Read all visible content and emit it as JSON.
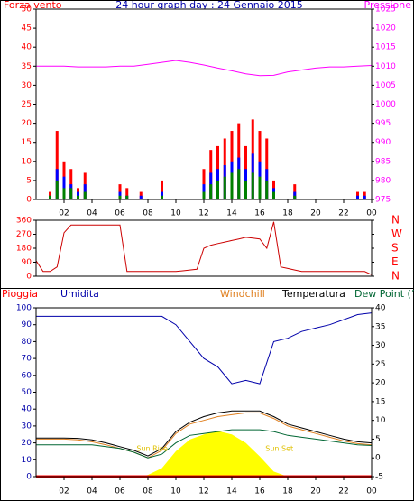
{
  "chart_data": [
    {
      "type": "bar",
      "title": "24 hour graph day : 24 Gennaio 2015",
      "ylabel": "Forza vento",
      "y2label": "Pressione",
      "xlim": [
        0,
        24
      ],
      "xticks": [
        {
          "value": 2,
          "label": "02"
        },
        {
          "value": 4,
          "label": "04"
        },
        {
          "value": 6,
          "label": "06"
        },
        {
          "value": 8,
          "label": "08"
        },
        10,
        12,
        14,
        16,
        18,
        20,
        22,
        {
          "value": 24,
          "label": "00"
        }
      ],
      "ylim": [
        0,
        50
      ],
      "yticks": [
        0,
        5,
        10,
        15,
        20,
        25,
        30,
        35,
        40,
        45,
        50
      ],
      "y2lim": [
        975,
        1025
      ],
      "y2ticks": [
        975,
        980,
        985,
        990,
        995,
        1000,
        1005,
        1010,
        1015,
        1020,
        1025
      ],
      "series": [
        {
          "type": "bar",
          "color": "#ff0000",
          "x": [
            0,
            0.5,
            1,
            1.5,
            2,
            2.5,
            3,
            3.5,
            4,
            4.5,
            5,
            5.5,
            6,
            6.5,
            7,
            7.5,
            8,
            8.5,
            9,
            9.5,
            10,
            10.5,
            11,
            11.5,
            12,
            12.5,
            13,
            13.5,
            14,
            14.5,
            15,
            15.5,
            16,
            16.5,
            17,
            17.5,
            18,
            18.5,
            19,
            19.5,
            20,
            20.5,
            21,
            21.5,
            22,
            22.5,
            23,
            23.5
          ],
          "values": [
            0,
            0,
            2,
            18,
            10,
            8,
            3,
            7,
            0,
            0,
            0,
            0,
            4,
            3,
            0,
            2,
            0,
            0,
            5,
            0,
            0,
            0,
            0,
            0,
            8,
            13,
            14,
            16,
            18,
            20,
            14,
            21,
            18,
            16,
            5,
            0,
            0,
            4,
            0,
            0,
            0,
            0,
            0,
            0,
            0,
            0,
            2,
            2
          ]
        },
        {
          "type": "bar",
          "color": "#0000ff",
          "x": [
            0,
            0.5,
            1,
            1.5,
            2,
            2.5,
            3,
            3.5,
            4,
            4.5,
            5,
            5.5,
            6,
            6.5,
            7,
            7.5,
            8,
            8.5,
            9,
            9.5,
            10,
            10.5,
            11,
            11.5,
            12,
            12.5,
            13,
            13.5,
            14,
            14.5,
            15,
            15.5,
            16,
            16.5,
            17,
            17.5,
            18,
            18.5,
            19,
            19.5,
            20,
            20.5,
            21,
            21.5,
            22,
            22.5,
            23,
            23.5
          ],
          "values": [
            0,
            0,
            1,
            8,
            6,
            4,
            2,
            4,
            0,
            0,
            0,
            0,
            2,
            1,
            0,
            1,
            0,
            0,
            2,
            0,
            0,
            0,
            0,
            0,
            4,
            7,
            8,
            9,
            10,
            11,
            8,
            12,
            10,
            8,
            3,
            0,
            0,
            2,
            0,
            0,
            0,
            0,
            0,
            0,
            0,
            0,
            1,
            1
          ]
        },
        {
          "type": "bar",
          "color": "#008000",
          "x": [
            0,
            0.5,
            1,
            1.5,
            2,
            2.5,
            3,
            3.5,
            4,
            4.5,
            5,
            5.5,
            6,
            6.5,
            7,
            7.5,
            8,
            8.5,
            9,
            9.5,
            10,
            10.5,
            11,
            11.5,
            12,
            12.5,
            13,
            13.5,
            14,
            14.5,
            15,
            15.5,
            16,
            16.5,
            17,
            17.5,
            18,
            18.5,
            19,
            19.5,
            20,
            20.5,
            21,
            21.5,
            22,
            22.5,
            23,
            23.5
          ],
          "values": [
            0,
            0,
            1,
            5,
            3,
            3,
            1,
            2,
            0,
            0,
            0,
            0,
            1,
            1,
            0,
            0,
            0,
            0,
            1,
            0,
            0,
            0,
            0,
            0,
            2,
            4,
            5,
            6,
            7,
            8,
            5,
            7,
            6,
            5,
            2,
            0,
            0,
            1,
            0,
            0,
            0,
            0,
            0,
            0,
            0,
            0,
            0,
            0
          ]
        },
        {
          "type": "line",
          "axis": "y2",
          "color": "#ff00ff",
          "x": [
            0,
            1,
            2,
            3,
            4,
            5,
            6,
            7,
            8,
            9,
            10,
            11,
            12,
            13,
            14,
            15,
            16,
            17,
            18,
            19,
            20,
            21,
            22,
            23,
            24
          ],
          "values": [
            1010,
            1010,
            1010,
            1009.8,
            1009.8,
            1009.8,
            1010,
            1010,
            1010.5,
            1011,
            1011.5,
            1011,
            1010.3,
            1009.5,
            1008.8,
            1008,
            1007.5,
            1007.6,
            1008.5,
            1009,
            1009.5,
            1009.8,
            1009.8,
            1010,
            1010.2
          ]
        }
      ]
    },
    {
      "type": "line",
      "xlim": [
        0,
        24
      ],
      "ylim": [
        0,
        360
      ],
      "yticks": [
        0,
        90,
        180,
        270,
        360
      ],
      "y2lim": [
        0,
        360
      ],
      "y2ticks": [
        {
          "value": 0,
          "label": "N"
        },
        {
          "value": 90,
          "label": "E"
        },
        {
          "value": 180,
          "label": "S"
        },
        {
          "value": 270,
          "label": "W"
        },
        {
          "value": 360,
          "label": "N"
        }
      ],
      "series": [
        {
          "type": "line",
          "color": "#cc0000",
          "x": [
            0,
            0.5,
            1,
            1.5,
            2,
            2.5,
            3,
            3.5,
            4,
            4.5,
            5,
            5.5,
            6,
            6.5,
            7,
            7.5,
            8,
            8.5,
            9,
            9.5,
            10,
            10.5,
            11,
            11.5,
            12,
            12.5,
            13,
            13.5,
            14,
            14.5,
            15,
            15.5,
            16,
            16.5,
            17,
            17.5,
            18,
            18.5,
            19,
            19.5,
            20,
            20.5,
            21,
            21.5,
            22,
            22.5,
            23,
            23.5,
            24
          ],
          "values": [
            100,
            30,
            30,
            60,
            280,
            330,
            330,
            330,
            330,
            330,
            330,
            330,
            330,
            30,
            30,
            30,
            30,
            30,
            30,
            30,
            30,
            35,
            40,
            45,
            180,
            200,
            210,
            220,
            230,
            240,
            250,
            245,
            240,
            180,
            350,
            60,
            50,
            40,
            30,
            30,
            30,
            30,
            30,
            30,
            30,
            30,
            30,
            30,
            10
          ]
        }
      ]
    },
    {
      "type": "line",
      "annotations": [
        "Sun Rise",
        "Sun Set"
      ],
      "xlim": [
        0,
        24
      ],
      "xticks": [
        {
          "value": 2,
          "label": "02"
        },
        {
          "value": 4,
          "label": "04"
        },
        {
          "value": 6,
          "label": "06"
        },
        {
          "value": 8,
          "label": "08"
        },
        10,
        12,
        14,
        16,
        18,
        20,
        22,
        {
          "value": 24,
          "label": "00"
        }
      ],
      "ylim": [
        0,
        100
      ],
      "yticks": [
        0,
        10,
        20,
        30,
        40,
        50,
        60,
        70,
        80,
        90,
        100
      ],
      "y2lim": [
        -5,
        40
      ],
      "y2ticks": [
        -5,
        0,
        5,
        10,
        15,
        20,
        25,
        30,
        35,
        40
      ],
      "series": [
        {
          "name": "Pioggia",
          "type": "line",
          "color": "#ff0000",
          "x": [
            0,
            24
          ],
          "values": [
            0,
            0
          ]
        },
        {
          "name": "Umidita",
          "type": "line",
          "color": "#0000aa",
          "x": [
            0,
            1,
            2,
            3,
            4,
            5,
            6,
            7,
            8,
            9,
            10,
            11,
            12,
            13,
            14,
            15,
            16,
            17,
            18,
            19,
            20,
            21,
            22,
            23,
            24
          ],
          "values": [
            95,
            95,
            95,
            95,
            95,
            95,
            95,
            95,
            95,
            95,
            90,
            80,
            70,
            65,
            55,
            57,
            55,
            80,
            82,
            86,
            88,
            90,
            93,
            96,
            97
          ]
        },
        {
          "name": "Windchill",
          "type": "line",
          "axis": "y2",
          "color": "#e08020",
          "x": [
            0,
            1,
            2,
            3,
            4,
            5,
            6,
            7,
            8,
            9,
            10,
            11,
            12,
            13,
            14,
            15,
            16,
            17,
            18,
            19,
            20,
            21,
            22,
            23,
            24
          ],
          "values": [
            5,
            5,
            5,
            4.8,
            4.3,
            3.5,
            2.5,
            1.5,
            0,
            2,
            6.5,
            9,
            10,
            11,
            11.5,
            12,
            12,
            10.5,
            8.5,
            7.5,
            6.5,
            5.5,
            4.5,
            3.8,
            3.5
          ]
        },
        {
          "name": "Temperatura",
          "type": "line",
          "axis": "y2",
          "color": "#000000",
          "x": [
            0,
            1,
            2,
            3,
            4,
            5,
            6,
            7,
            8,
            9,
            10,
            11,
            12,
            13,
            14,
            15,
            16,
            17,
            18,
            19,
            20,
            21,
            22,
            23,
            24
          ],
          "values": [
            5.3,
            5.3,
            5.3,
            5.2,
            4.8,
            4,
            3,
            2,
            0.5,
            2.5,
            7,
            9.5,
            11,
            12,
            12.5,
            12.5,
            12.5,
            11,
            9,
            8,
            7,
            6,
            5,
            4.3,
            4
          ]
        },
        {
          "name": "Dew Point (°C",
          "type": "line",
          "axis": "y2",
          "color": "#006633",
          "x": [
            0,
            1,
            2,
            3,
            4,
            5,
            6,
            7,
            8,
            9,
            10,
            11,
            12,
            13,
            14,
            15,
            16,
            17,
            18,
            19,
            20,
            21,
            22,
            23,
            24
          ],
          "values": [
            3.5,
            3.5,
            3.5,
            3.5,
            3.5,
            3,
            2.5,
            1.5,
            0,
            1,
            4,
            6,
            6.5,
            7,
            7.5,
            7.5,
            7.5,
            7,
            6,
            5.5,
            5,
            4.5,
            4,
            3.5,
            3.3
          ]
        },
        {
          "type": "area",
          "color": "#ffff00",
          "x": [
            7.5,
            8,
            9,
            10,
            11,
            12,
            13,
            14,
            15,
            16,
            17,
            18
          ],
          "values": [
            0,
            1,
            5,
            15,
            22,
            25,
            27,
            25,
            20,
            12,
            3,
            0
          ]
        }
      ]
    }
  ]
}
